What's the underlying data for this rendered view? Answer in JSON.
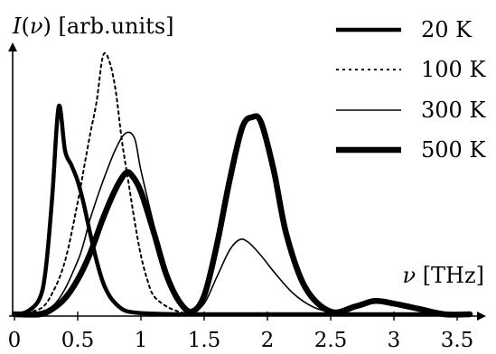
{
  "chart_data": {
    "type": "line",
    "ylabel": "I(ν) [arb.units]",
    "ylabel_var": "I",
    "ylabel_arg": "ν",
    "ylabel_unit": "[arb.units]",
    "xlabel": "ν [THz]",
    "xlabel_var": "ν",
    "xlabel_unit": "[THz]",
    "xlim": [
      0,
      3.7
    ],
    "ylim": [
      0,
      1
    ],
    "x_ticks": [
      0,
      0.5,
      1,
      1.5,
      2,
      2.5,
      3,
      3.5
    ],
    "x_tick_labels": [
      "0",
      "0.5",
      "1",
      "1.5",
      "2",
      "2.5",
      "3",
      "3.5"
    ],
    "grid": false,
    "legend_position": "top-right",
    "series": [
      {
        "name": "20 K",
        "style": "thick-solid",
        "x": [
          0.0,
          0.1,
          0.2,
          0.25,
          0.3,
          0.35,
          0.4,
          0.45,
          0.5,
          0.55,
          0.6,
          0.65,
          0.7,
          0.75,
          0.8,
          0.85,
          0.9,
          1.0,
          1.1,
          1.3,
          1.5,
          2.0,
          2.5,
          3.0,
          3.6
        ],
        "y": [
          0.0,
          0.01,
          0.06,
          0.18,
          0.45,
          0.78,
          0.614,
          0.56,
          0.5,
          0.41,
          0.3,
          0.2,
          0.12,
          0.07,
          0.04,
          0.02,
          0.01,
          0.004,
          0.002,
          0.0,
          0.0,
          0.0,
          0.0,
          0.0,
          0.0
        ]
      },
      {
        "name": "100 K",
        "style": "dotted",
        "x": [
          0.0,
          0.2,
          0.3,
          0.4,
          0.5,
          0.55,
          0.6,
          0.65,
          0.7,
          0.75,
          0.8,
          0.85,
          0.9,
          0.95,
          1.0,
          1.05,
          1.1,
          1.2,
          1.3,
          1.4,
          1.6,
          2.0,
          2.5,
          3.0,
          3.6
        ],
        "y": [
          0.0,
          0.02,
          0.08,
          0.2,
          0.42,
          0.55,
          0.68,
          0.8,
          0.97,
          0.95,
          0.84,
          0.65,
          0.5,
          0.35,
          0.22,
          0.13,
          0.07,
          0.03,
          0.01,
          0.0,
          0.0,
          0.0,
          0.0,
          0.0,
          0.0
        ]
      },
      {
        "name": "300 K",
        "style": "thin-solid",
        "x": [
          0.0,
          0.3,
          0.5,
          0.6,
          0.7,
          0.8,
          0.88,
          0.95,
          1.0,
          1.1,
          1.2,
          1.3,
          1.4,
          1.5,
          1.6,
          1.7,
          1.78,
          1.85,
          1.95,
          2.05,
          2.2,
          2.35,
          2.5,
          2.8,
          3.0,
          3.6
        ],
        "y": [
          0.0,
          0.03,
          0.2,
          0.36,
          0.5,
          0.62,
          0.68,
          0.66,
          0.54,
          0.34,
          0.15,
          0.05,
          0.01,
          0.04,
          0.14,
          0.24,
          0.28,
          0.27,
          0.22,
          0.16,
          0.08,
          0.03,
          0.01,
          0.0,
          0.0,
          0.0
        ]
      },
      {
        "name": "500 K",
        "style": "extra-thick-solid",
        "x": [
          0.0,
          0.2,
          0.3,
          0.4,
          0.5,
          0.6,
          0.7,
          0.8,
          0.88,
          0.93,
          1.0,
          1.1,
          1.2,
          1.3,
          1.4,
          1.5,
          1.6,
          1.7,
          1.8,
          1.88,
          1.95,
          2.05,
          2.15,
          2.3,
          2.5,
          2.7,
          2.85,
          3.0,
          3.2,
          3.4,
          3.6
        ],
        "y": [
          0.0,
          0.0,
          0.02,
          0.06,
          0.13,
          0.23,
          0.36,
          0.47,
          0.53,
          0.52,
          0.46,
          0.31,
          0.15,
          0.05,
          0.01,
          0.07,
          0.26,
          0.5,
          0.7,
          0.74,
          0.72,
          0.54,
          0.3,
          0.1,
          0.01,
          0.03,
          0.05,
          0.04,
          0.02,
          0.0,
          0.0
        ]
      }
    ]
  }
}
